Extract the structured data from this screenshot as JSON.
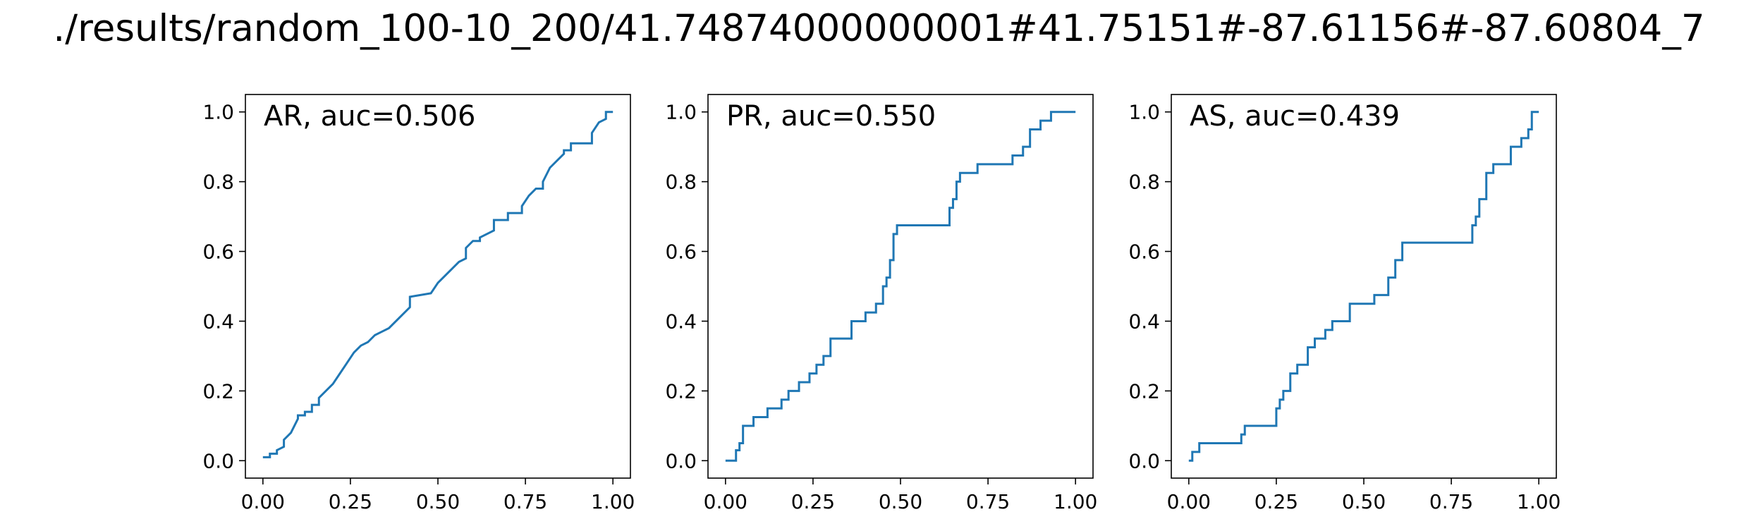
{
  "figure_title": "./results/random_100-10_200/41.74874000000001#41.75151#-87.61156#-87.60804_7",
  "colors": {
    "line": "#1f77b4",
    "axes": "#000000",
    "background": "#ffffff"
  },
  "chart_data": [
    {
      "type": "line",
      "annotation": "AR, auc=0.506",
      "xlim": [
        -0.05,
        1.05
      ],
      "ylim": [
        -0.05,
        1.05
      ],
      "xticks": [
        "0.00",
        "0.25",
        "0.50",
        "0.75",
        "1.00"
      ],
      "yticks": [
        "0.0",
        "0.2",
        "0.4",
        "0.6",
        "0.8",
        "1.0"
      ],
      "grid": false,
      "series": [
        {
          "x": [
            0.0,
            0.02,
            0.02,
            0.04,
            0.04,
            0.06,
            0.06,
            0.08,
            0.09,
            0.1,
            0.1,
            0.12,
            0.12,
            0.14,
            0.14,
            0.16,
            0.16,
            0.18,
            0.2,
            0.22,
            0.24,
            0.26,
            0.28,
            0.3,
            0.32,
            0.34,
            0.36,
            0.4,
            0.42,
            0.42,
            0.48,
            0.5,
            0.52,
            0.54,
            0.56,
            0.58,
            0.58,
            0.6,
            0.62,
            0.62,
            0.66,
            0.66,
            0.7,
            0.7,
            0.74,
            0.74,
            0.76,
            0.78,
            0.8,
            0.8,
            0.82,
            0.84,
            0.86,
            0.86,
            0.88,
            0.88,
            0.9,
            0.9,
            0.94,
            0.94,
            0.96,
            0.98,
            0.98,
            1.0
          ],
          "y": [
            0.01,
            0.01,
            0.02,
            0.02,
            0.03,
            0.04,
            0.06,
            0.08,
            0.1,
            0.12,
            0.13,
            0.13,
            0.14,
            0.14,
            0.16,
            0.16,
            0.18,
            0.2,
            0.22,
            0.25,
            0.28,
            0.31,
            0.33,
            0.34,
            0.36,
            0.37,
            0.38,
            0.42,
            0.44,
            0.47,
            0.48,
            0.51,
            0.53,
            0.55,
            0.57,
            0.58,
            0.61,
            0.63,
            0.63,
            0.64,
            0.66,
            0.69,
            0.69,
            0.71,
            0.71,
            0.73,
            0.76,
            0.78,
            0.78,
            0.8,
            0.84,
            0.86,
            0.88,
            0.89,
            0.89,
            0.91,
            0.91,
            0.91,
            0.91,
            0.94,
            0.97,
            0.98,
            1.0,
            1.0
          ]
        }
      ]
    },
    {
      "type": "line",
      "annotation": "PR, auc=0.550",
      "xlim": [
        -0.05,
        1.05
      ],
      "ylim": [
        -0.05,
        1.05
      ],
      "xticks": [
        "0.00",
        "0.25",
        "0.50",
        "0.75",
        "1.00"
      ],
      "yticks": [
        "0.0",
        "0.2",
        "0.4",
        "0.6",
        "0.8",
        "1.0"
      ],
      "grid": false,
      "series": [
        {
          "x": [
            0.0,
            0.03,
            0.03,
            0.04,
            0.04,
            0.05,
            0.05,
            0.08,
            0.08,
            0.12,
            0.12,
            0.16,
            0.16,
            0.18,
            0.18,
            0.21,
            0.21,
            0.24,
            0.24,
            0.26,
            0.26,
            0.28,
            0.28,
            0.3,
            0.3,
            0.36,
            0.36,
            0.4,
            0.4,
            0.43,
            0.43,
            0.45,
            0.45,
            0.46,
            0.46,
            0.47,
            0.47,
            0.48,
            0.48,
            0.49,
            0.49,
            0.5,
            0.5,
            0.64,
            0.64,
            0.65,
            0.65,
            0.66,
            0.66,
            0.67,
            0.67,
            0.72,
            0.72,
            0.82,
            0.82,
            0.85,
            0.85,
            0.87,
            0.87,
            0.9,
            0.9,
            0.93,
            0.93,
            1.0
          ],
          "y": [
            0.0,
            0.0,
            0.03,
            0.03,
            0.05,
            0.05,
            0.1,
            0.1,
            0.125,
            0.125,
            0.15,
            0.15,
            0.175,
            0.175,
            0.2,
            0.2,
            0.225,
            0.225,
            0.25,
            0.25,
            0.275,
            0.275,
            0.3,
            0.3,
            0.35,
            0.35,
            0.4,
            0.4,
            0.425,
            0.425,
            0.45,
            0.45,
            0.5,
            0.5,
            0.525,
            0.525,
            0.575,
            0.575,
            0.65,
            0.65,
            0.675,
            0.675,
            0.675,
            0.675,
            0.725,
            0.725,
            0.75,
            0.75,
            0.8,
            0.8,
            0.825,
            0.825,
            0.85,
            0.85,
            0.875,
            0.875,
            0.9,
            0.9,
            0.95,
            0.95,
            0.975,
            0.975,
            1.0,
            1.0
          ]
        }
      ]
    },
    {
      "type": "line",
      "annotation": "AS, auc=0.439",
      "xlim": [
        -0.05,
        1.05
      ],
      "ylim": [
        -0.05,
        1.05
      ],
      "xticks": [
        "0.00",
        "0.25",
        "0.50",
        "0.75",
        "1.00"
      ],
      "yticks": [
        "0.0",
        "0.2",
        "0.4",
        "0.6",
        "0.8",
        "1.0"
      ],
      "grid": false,
      "series": [
        {
          "x": [
            0.0,
            0.01,
            0.01,
            0.03,
            0.03,
            0.15,
            0.15,
            0.16,
            0.16,
            0.17,
            0.17,
            0.25,
            0.25,
            0.26,
            0.26,
            0.27,
            0.27,
            0.29,
            0.29,
            0.31,
            0.31,
            0.34,
            0.34,
            0.36,
            0.36,
            0.39,
            0.39,
            0.41,
            0.41,
            0.46,
            0.46,
            0.53,
            0.53,
            0.57,
            0.57,
            0.59,
            0.59,
            0.61,
            0.61,
            0.81,
            0.81,
            0.82,
            0.82,
            0.83,
            0.83,
            0.85,
            0.85,
            0.87,
            0.87,
            0.92,
            0.92,
            0.95,
            0.95,
            0.97,
            0.97,
            0.98,
            0.98,
            1.0
          ],
          "y": [
            0.0,
            0.0,
            0.025,
            0.025,
            0.05,
            0.05,
            0.075,
            0.075,
            0.1,
            0.1,
            0.1,
            0.1,
            0.15,
            0.15,
            0.175,
            0.175,
            0.2,
            0.2,
            0.25,
            0.25,
            0.275,
            0.275,
            0.325,
            0.325,
            0.35,
            0.35,
            0.375,
            0.375,
            0.4,
            0.4,
            0.45,
            0.45,
            0.475,
            0.475,
            0.525,
            0.525,
            0.575,
            0.575,
            0.625,
            0.625,
            0.675,
            0.675,
            0.7,
            0.7,
            0.75,
            0.75,
            0.825,
            0.825,
            0.85,
            0.85,
            0.9,
            0.9,
            0.925,
            0.925,
            0.95,
            0.95,
            1.0,
            1.0
          ]
        }
      ]
    }
  ]
}
